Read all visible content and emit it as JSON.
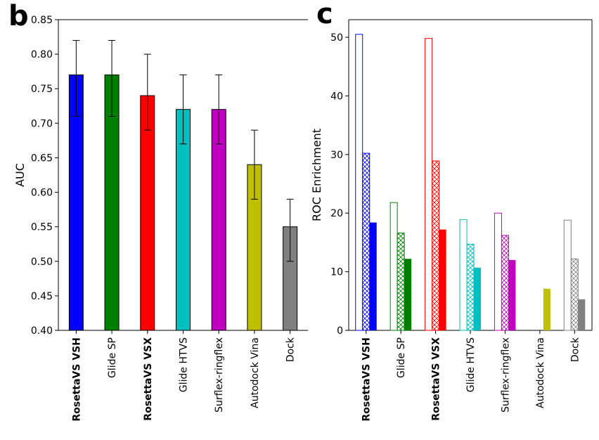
{
  "panels": {
    "b": "b",
    "c": "c"
  },
  "chart_data": [
    {
      "type": "bar",
      "panel": "b",
      "title": "",
      "xlabel": "",
      "ylabel": "AUC",
      "ylim": [
        0.4,
        0.85
      ],
      "yticks": [
        "0.40",
        "0.45",
        "0.50",
        "0.55",
        "0.60",
        "0.65",
        "0.70",
        "0.75",
        "0.80",
        "0.85"
      ],
      "categories": [
        "RosettaVS VSH",
        "Glide SP",
        "RosettaVS VSX",
        "Glide HTVS",
        "Surflex-ringflex",
        "Autodock Vina",
        "Dock"
      ],
      "bold_categories": [
        "RosettaVS VSH",
        "RosettaVS VSX"
      ],
      "values": [
        0.77,
        0.77,
        0.74,
        0.72,
        0.72,
        0.64,
        0.55
      ],
      "error_low": [
        0.71,
        0.71,
        0.69,
        0.67,
        0.67,
        0.59,
        0.5
      ],
      "error_high": [
        0.82,
        0.82,
        0.8,
        0.77,
        0.77,
        0.69,
        0.59
      ],
      "colors": [
        "#0000ff",
        "#008000",
        "#ff0000",
        "#00bfbf",
        "#bf00bf",
        "#bfbf00",
        "#808080"
      ]
    },
    {
      "type": "bar",
      "panel": "c",
      "title": "",
      "xlabel": "",
      "ylabel": "ROC Enrichment",
      "ylim": [
        0,
        53
      ],
      "yticks": [
        "0",
        "10",
        "20",
        "30",
        "40",
        "50"
      ],
      "categories": [
        "RosettaVS VSH",
        "Glide SP",
        "RosettaVS VSX",
        "Glide HTVS",
        "Surflex-ringflex",
        "Autodock Vina",
        "Dock"
      ],
      "bold_categories": [
        "RosettaVS VSH",
        "RosettaVS VSX"
      ],
      "colors": [
        "#0000ff",
        "#008000",
        "#ff0000",
        "#00bfbf",
        "#bf00bf",
        "#bfbf00",
        "#808080"
      ],
      "series": [
        {
          "name": "open",
          "style": "outline",
          "values": [
            50.5,
            21.8,
            49.8,
            18.9,
            20.0,
            null,
            18.8
          ]
        },
        {
          "name": "hatched",
          "style": "hatched",
          "values": [
            30.2,
            16.6,
            28.9,
            14.7,
            16.2,
            null,
            12.2
          ]
        },
        {
          "name": "solid",
          "style": "solid",
          "values": [
            18.4,
            12.2,
            17.2,
            10.7,
            12.0,
            7.1,
            5.3
          ]
        }
      ]
    }
  ]
}
